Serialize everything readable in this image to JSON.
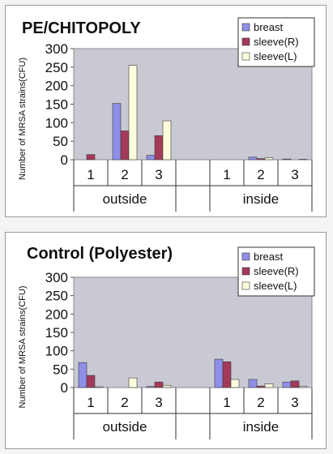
{
  "colors": {
    "plot_bg": "#c9c9d4",
    "breast": "#8f8fe8",
    "sleeve_r": "#a33a5a",
    "sleeve_l": "#fcfcdc",
    "bar_stroke": "#3a3a3a"
  },
  "chart_data": [
    {
      "type": "bar",
      "title": "PE/CHITOPOLY",
      "ylabel": "Number of MRSA strains(CFU)",
      "ylim": [
        0,
        300
      ],
      "yticks": [
        0,
        50,
        100,
        150,
        200,
        250,
        300
      ],
      "grid": false,
      "legend_position": "top-right",
      "groups": [
        {
          "label": "outside",
          "categories": [
            "1",
            "2",
            "3"
          ]
        },
        {
          "label": "inside",
          "categories": [
            "1",
            "2",
            "3"
          ]
        }
      ],
      "categories": [
        "1",
        "2",
        "3",
        "",
        "1",
        "2",
        "3"
      ],
      "series": [
        {
          "name": "breast",
          "values": [
            0,
            152,
            12,
            null,
            0,
            7,
            2
          ]
        },
        {
          "name": "sleeve(R)",
          "values": [
            14,
            78,
            65,
            null,
            0,
            3,
            0
          ]
        },
        {
          "name": "sleeve(L)",
          "values": [
            0,
            255,
            105,
            null,
            0,
            5,
            1
          ]
        }
      ]
    },
    {
      "type": "bar",
      "title": "Control (Polyester)",
      "ylabel": "Number of MRSA strains(CFU)",
      "ylim": [
        0,
        300
      ],
      "yticks": [
        0,
        50,
        100,
        150,
        200,
        250,
        300
      ],
      "grid": false,
      "legend_position": "top-right",
      "groups": [
        {
          "label": "outside",
          "categories": [
            "1",
            "2",
            "3"
          ]
        },
        {
          "label": "inside",
          "categories": [
            "1",
            "2",
            "3"
          ]
        }
      ],
      "categories": [
        "1",
        "2",
        "3",
        "",
        "1",
        "2",
        "3"
      ],
      "series": [
        {
          "name": "breast",
          "values": [
            68,
            0,
            3,
            null,
            77,
            22,
            15
          ]
        },
        {
          "name": "sleeve(R)",
          "values": [
            33,
            0,
            15,
            null,
            70,
            4,
            18
          ]
        },
        {
          "name": "sleeve(L)",
          "values": [
            2,
            26,
            6,
            null,
            22,
            10,
            3
          ]
        }
      ]
    }
  ]
}
